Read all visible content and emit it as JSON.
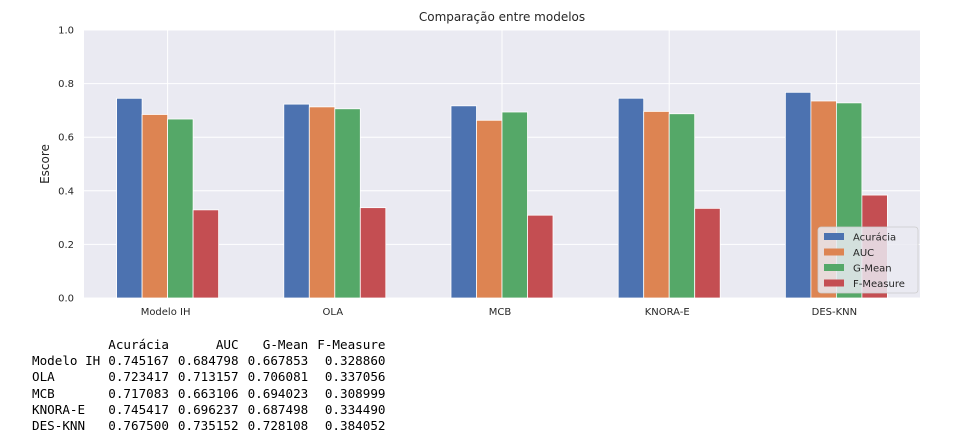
{
  "chart_data": {
    "type": "bar",
    "title": "Comparação entre modelos",
    "xlabel": "",
    "ylabel": "Escore",
    "ylim": [
      0,
      1.0
    ],
    "yticks": [
      "0.0",
      "0.2",
      "0.4",
      "0.6",
      "0.8",
      "1.0"
    ],
    "grid": true,
    "legend_position": "bottom-right",
    "categories": [
      "Modelo IH",
      "OLA",
      "MCB",
      "KNORA-E",
      "DES-KNN"
    ],
    "series": [
      {
        "name": "Acurácia",
        "color": "#4c72b0",
        "values": [
          0.745167,
          0.723417,
          0.717083,
          0.745417,
          0.7675
        ]
      },
      {
        "name": "AUC",
        "color": "#dd8452",
        "values": [
          0.684798,
          0.713157,
          0.663106,
          0.696237,
          0.735152
        ]
      },
      {
        "name": "G-Mean",
        "color": "#55a868",
        "values": [
          0.667853,
          0.706081,
          0.694023,
          0.687498,
          0.728108
        ]
      },
      {
        "name": "F-Measure",
        "color": "#c44e52",
        "values": [
          0.32886,
          0.337056,
          0.308999,
          0.33449,
          0.384052
        ]
      }
    ]
  },
  "table": {
    "columns": [
      "Acurácia",
      "AUC",
      "G-Mean",
      "F-Measure"
    ],
    "rows": [
      {
        "name": "Modelo IH",
        "values": [
          "0.745167",
          "0.684798",
          "0.667853",
          "0.328860"
        ]
      },
      {
        "name": "OLA",
        "values": [
          "0.723417",
          "0.713157",
          "0.706081",
          "0.337056"
        ]
      },
      {
        "name": "MCB",
        "values": [
          "0.717083",
          "0.663106",
          "0.694023",
          "0.308999"
        ]
      },
      {
        "name": "KNORA-E",
        "values": [
          "0.745417",
          "0.696237",
          "0.687498",
          "0.334490"
        ]
      },
      {
        "name": "DES-KNN",
        "values": [
          "0.767500",
          "0.735152",
          "0.728108",
          "0.384052"
        ]
      }
    ]
  }
}
